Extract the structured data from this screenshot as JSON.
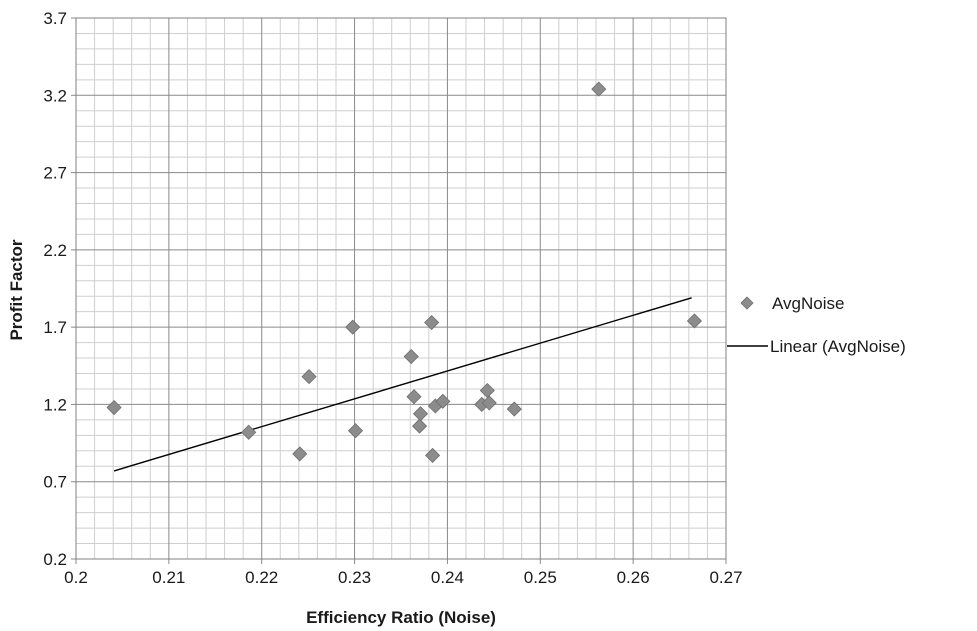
{
  "chart_data": {
    "type": "scatter",
    "xlabel": "Efficiency Ratio (Noise)",
    "ylabel": "Profit Factor",
    "xlim": [
      0.2,
      0.27
    ],
    "ylim": [
      0.2,
      3.7
    ],
    "x_ticks": [
      "0.2",
      "0.21",
      "0.22",
      "0.23",
      "0.24",
      "0.25",
      "0.26",
      "0.27"
    ],
    "y_ticks": [
      "0.2",
      "0.7",
      "1.2",
      "1.7",
      "2.2",
      "2.7",
      "3.2",
      "3.7"
    ],
    "grid": true,
    "legend_position": "right",
    "series": [
      {
        "name": "AvgNoise",
        "marker": "diamond",
        "color": "#8c8c8c",
        "points": [
          {
            "x": 0.2041,
            "y": 1.18
          },
          {
            "x": 0.2186,
            "y": 1.02
          },
          {
            "x": 0.2241,
            "y": 0.88
          },
          {
            "x": 0.2251,
            "y": 1.38
          },
          {
            "x": 0.2298,
            "y": 1.7
          },
          {
            "x": 0.2301,
            "y": 1.03
          },
          {
            "x": 0.2361,
            "y": 1.51
          },
          {
            "x": 0.2364,
            "y": 1.25
          },
          {
            "x": 0.237,
            "y": 1.06
          },
          {
            "x": 0.2371,
            "y": 1.14
          },
          {
            "x": 0.2383,
            "y": 1.73
          },
          {
            "x": 0.2384,
            "y": 0.87
          },
          {
            "x": 0.2387,
            "y": 1.19
          },
          {
            "x": 0.2395,
            "y": 1.22
          },
          {
            "x": 0.2437,
            "y": 1.2
          },
          {
            "x": 0.2443,
            "y": 1.29
          },
          {
            "x": 0.2445,
            "y": 1.21
          },
          {
            "x": 0.2472,
            "y": 1.17
          },
          {
            "x": 0.2563,
            "y": 3.24
          },
          {
            "x": 0.2666,
            "y": 1.74
          }
        ]
      },
      {
        "name": "Linear (AvgNoise)",
        "type": "trendline",
        "color": "#000000",
        "points": [
          {
            "x": 0.2041,
            "y": 0.77
          },
          {
            "x": 0.2663,
            "y": 1.89
          }
        ]
      }
    ]
  }
}
